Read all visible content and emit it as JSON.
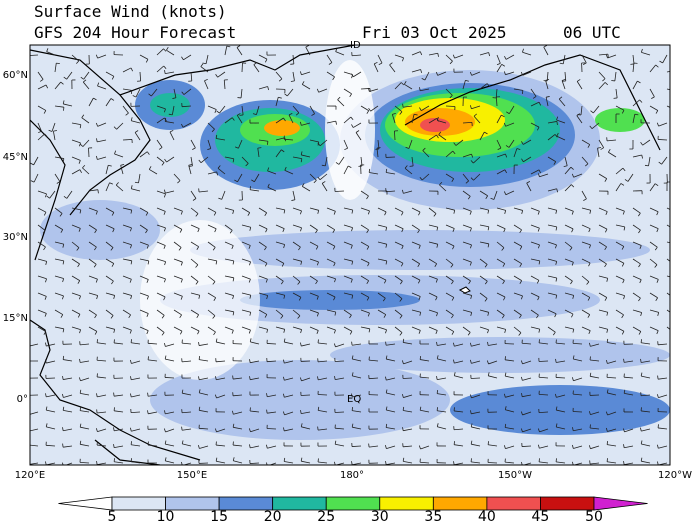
{
  "header": {
    "title": "Surface Wind (knots)",
    "subtitle": "GFS 204 Hour Forecast",
    "date": "Fri 03 Oct 2025",
    "time": "06 UTC"
  },
  "map": {
    "lat_labels": [
      "60°N",
      "45°N",
      "30°N",
      "15°N",
      "0°"
    ],
    "lon_labels": [
      "120°E",
      "150°E",
      "180°",
      "150°W",
      "120°W"
    ],
    "place_labels": [
      "ID",
      "EQ"
    ]
  },
  "colorbar": {
    "ticks": [
      5,
      10,
      15,
      20,
      25,
      30,
      35,
      40,
      45,
      50
    ],
    "colors": [
      "#ffffff",
      "#dce6f4",
      "#b0c4ec",
      "#5a8ad6",
      "#20b8a0",
      "#50e050",
      "#f8f000",
      "#ffa800",
      "#f05050",
      "#c81010",
      "#d020d0"
    ]
  }
}
